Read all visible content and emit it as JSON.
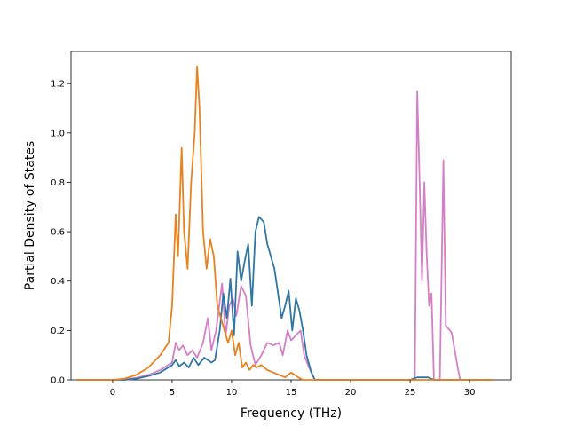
{
  "chart_data": {
    "type": "line",
    "title": "",
    "xlabel": "Frequency (THz)",
    "ylabel": "Partial Density of States",
    "xlim": [
      -3.5,
      33.5
    ],
    "ylim": [
      0.0,
      1.33
    ],
    "xticks": [
      0,
      5,
      10,
      15,
      20,
      25,
      30
    ],
    "xtick_labels": [
      "0",
      "5",
      "10",
      "15",
      "20",
      "25",
      "30"
    ],
    "yticks": [
      0.0,
      0.2,
      0.4,
      0.6,
      0.8,
      1.0,
      1.2
    ],
    "ytick_labels": [
      "0.0",
      "0.2",
      "0.4",
      "0.6",
      "0.8",
      "1.0",
      "1.2"
    ],
    "grid": false,
    "legend": "none",
    "series": [
      {
        "color": "#d47fc6",
        "points": [
          [
            -3,
            0
          ],
          [
            0,
            0
          ],
          [
            1,
            0.003
          ],
          [
            2,
            0.008
          ],
          [
            3,
            0.02
          ],
          [
            4,
            0.04
          ],
          [
            5,
            0.07
          ],
          [
            5.3,
            0.15
          ],
          [
            5.6,
            0.12
          ],
          [
            5.9,
            0.14
          ],
          [
            6.3,
            0.1
          ],
          [
            6.7,
            0.12
          ],
          [
            7.1,
            0.09
          ],
          [
            7.6,
            0.15
          ],
          [
            8.0,
            0.25
          ],
          [
            8.3,
            0.12
          ],
          [
            8.7,
            0.2
          ],
          [
            9.2,
            0.39
          ],
          [
            9.5,
            0.18
          ],
          [
            9.8,
            0.3
          ],
          [
            10.1,
            0.33
          ],
          [
            10.4,
            0.26
          ],
          [
            10.8,
            0.38
          ],
          [
            11.2,
            0.34
          ],
          [
            11.6,
            0.14
          ],
          [
            12.0,
            0.06
          ],
          [
            12.5,
            0.1
          ],
          [
            13.0,
            0.15
          ],
          [
            13.5,
            0.14
          ],
          [
            14.0,
            0.15
          ],
          [
            14.3,
            0.1
          ],
          [
            14.7,
            0.2
          ],
          [
            15.0,
            0.16
          ],
          [
            15.4,
            0.18
          ],
          [
            15.8,
            0.2
          ],
          [
            16.1,
            0.1
          ],
          [
            16.5,
            0.05
          ],
          [
            17.0,
            0
          ],
          [
            25.0,
            0
          ],
          [
            25.4,
            0
          ],
          [
            25.6,
            1.17
          ],
          [
            25.8,
            0.8
          ],
          [
            26.0,
            0.4
          ],
          [
            26.2,
            0.8
          ],
          [
            26.4,
            0.5
          ],
          [
            26.6,
            0.3
          ],
          [
            26.8,
            0.35
          ],
          [
            27.0,
            0
          ],
          [
            27.5,
            0
          ],
          [
            27.8,
            0.89
          ],
          [
            28.0,
            0.22
          ],
          [
            28.5,
            0.19
          ],
          [
            29.0,
            0.05
          ],
          [
            29.2,
            0
          ],
          [
            32,
            0
          ]
        ]
      },
      {
        "color": "#2f76a6",
        "points": [
          [
            -3,
            0
          ],
          [
            1,
            0
          ],
          [
            2,
            0.005
          ],
          [
            3,
            0.015
          ],
          [
            4,
            0.03
          ],
          [
            5,
            0.06
          ],
          [
            5.3,
            0.08
          ],
          [
            5.6,
            0.055
          ],
          [
            6,
            0.07
          ],
          [
            6.4,
            0.05
          ],
          [
            6.8,
            0.09
          ],
          [
            7.2,
            0.06
          ],
          [
            7.7,
            0.09
          ],
          [
            8.0,
            0.08
          ],
          [
            8.3,
            0.07
          ],
          [
            8.6,
            0.08
          ],
          [
            9.0,
            0.2
          ],
          [
            9.3,
            0.35
          ],
          [
            9.6,
            0.25
          ],
          [
            9.9,
            0.41
          ],
          [
            10.2,
            0.18
          ],
          [
            10.5,
            0.52
          ],
          [
            10.8,
            0.4
          ],
          [
            11.1,
            0.48
          ],
          [
            11.4,
            0.55
          ],
          [
            11.7,
            0.3
          ],
          [
            12.0,
            0.6
          ],
          [
            12.3,
            0.66
          ],
          [
            12.7,
            0.64
          ],
          [
            13.0,
            0.55
          ],
          [
            13.3,
            0.5
          ],
          [
            13.6,
            0.45
          ],
          [
            13.9,
            0.35
          ],
          [
            14.2,
            0.25
          ],
          [
            14.5,
            0.3
          ],
          [
            14.8,
            0.36
          ],
          [
            15.1,
            0.2
          ],
          [
            15.4,
            0.33
          ],
          [
            15.7,
            0.28
          ],
          [
            16.0,
            0.2
          ],
          [
            16.3,
            0.1
          ],
          [
            16.7,
            0.03
          ],
          [
            17.0,
            0
          ],
          [
            25,
            0
          ],
          [
            25.6,
            0.01
          ],
          [
            26.0,
            0.01
          ],
          [
            26.5,
            0.01
          ],
          [
            27.0,
            0
          ],
          [
            28,
            0
          ],
          [
            32,
            0
          ]
        ]
      },
      {
        "color": "#e8821e",
        "points": [
          [
            -3,
            0
          ],
          [
            0,
            0
          ],
          [
            1,
            0.005
          ],
          [
            2,
            0.02
          ],
          [
            3,
            0.05
          ],
          [
            4,
            0.1
          ],
          [
            4.7,
            0.15
          ],
          [
            5.0,
            0.3
          ],
          [
            5.3,
            0.67
          ],
          [
            5.5,
            0.5
          ],
          [
            5.8,
            0.94
          ],
          [
            6.0,
            0.6
          ],
          [
            6.3,
            0.45
          ],
          [
            6.6,
            0.8
          ],
          [
            6.9,
            1.0
          ],
          [
            7.1,
            1.27
          ],
          [
            7.3,
            1.1
          ],
          [
            7.6,
            0.6
          ],
          [
            7.9,
            0.45
          ],
          [
            8.2,
            0.57
          ],
          [
            8.5,
            0.5
          ],
          [
            8.8,
            0.3
          ],
          [
            9.1,
            0.25
          ],
          [
            9.4,
            0.2
          ],
          [
            9.7,
            0.15
          ],
          [
            10.0,
            0.2
          ],
          [
            10.3,
            0.1
          ],
          [
            10.6,
            0.15
          ],
          [
            10.9,
            0.05
          ],
          [
            11.2,
            0.07
          ],
          [
            11.5,
            0.04
          ],
          [
            11.8,
            0.06
          ],
          [
            12.1,
            0.05
          ],
          [
            12.5,
            0.06
          ],
          [
            13.0,
            0.04
          ],
          [
            13.5,
            0.03
          ],
          [
            14.0,
            0.02
          ],
          [
            14.5,
            0.01
          ],
          [
            15.0,
            0.03
          ],
          [
            15.3,
            0.02
          ],
          [
            15.6,
            0.01
          ],
          [
            16.0,
            0
          ],
          [
            32,
            0
          ]
        ]
      }
    ]
  }
}
